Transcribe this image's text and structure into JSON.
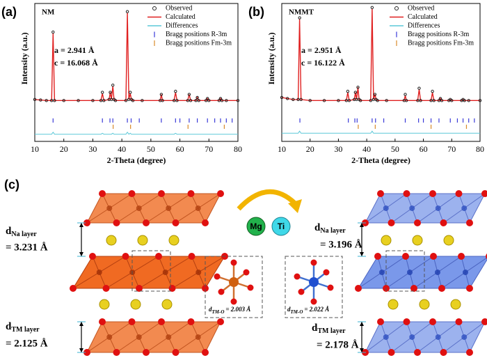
{
  "chart_data": [
    {
      "type": "line",
      "panel_label": "(a)",
      "annotation": "NM",
      "lattice": [
        "a = 2.941 Å",
        "c = 16.068 Å"
      ],
      "xlabel": "2-Theta (degree)",
      "ylabel": "Intensity (a.u.)",
      "legend": "upper right",
      "xlim": [
        10,
        80
      ],
      "xticks": [
        10,
        20,
        30,
        40,
        50,
        60,
        70,
        80
      ],
      "ylim": [
        -35,
        100
      ],
      "x": [
        10,
        12,
        14,
        15.8,
        16.3,
        16.8,
        20,
        25,
        30,
        32.8,
        33.3,
        33.8,
        35.6,
        36.0,
        36.4,
        36.9,
        37.3,
        37.8,
        41.4,
        41.9,
        42.4,
        42.9,
        43.3,
        43.8,
        47,
        53.2,
        53.6,
        54.0,
        58.0,
        58.5,
        59.0,
        62.7,
        63.2,
        63.7,
        65.5,
        66,
        66.5,
        69,
        69.5,
        70,
        73.5,
        74,
        74.5,
        76,
        80
      ],
      "series": [
        {
          "name": "Observed",
          "color": "#222222",
          "style": "markers",
          "values": [
            6,
            5.5,
            5,
            5,
            72,
            5,
            5,
            5,
            5,
            5,
            13,
            5,
            6,
            13,
            6,
            20,
            6,
            5,
            5,
            92,
            6,
            13,
            6,
            5,
            5,
            5,
            11,
            5,
            5,
            14,
            5,
            5,
            11,
            5,
            5,
            8,
            5,
            5,
            7,
            5,
            5,
            7,
            5,
            5,
            5
          ]
        },
        {
          "name": "Calculated",
          "color": "#e02020",
          "style": "line",
          "values": [
            6,
            5.5,
            5,
            5,
            71,
            5,
            5,
            5,
            5,
            5,
            12,
            5,
            6,
            13,
            6,
            19,
            6,
            5,
            5,
            91,
            6,
            12,
            6,
            5,
            5,
            5,
            11,
            5,
            5,
            13,
            5,
            5,
            11,
            5,
            5,
            8,
            5,
            5,
            7,
            5,
            5,
            7,
            5,
            5,
            5
          ]
        },
        {
          "name": "Differences",
          "color": "#5cc8d8",
          "style": "line",
          "values": [
            -28,
            -28,
            -28,
            -28,
            -26,
            -28,
            -28,
            -28,
            -28,
            -28,
            -27,
            -28,
            -28,
            -28,
            -28,
            -27,
            -28,
            -28,
            -28,
            -26,
            -28,
            -27,
            -28,
            -28,
            -28,
            -28,
            -28,
            -28,
            -28,
            -27,
            -28,
            -28,
            -28,
            -28,
            -28,
            -28,
            -28,
            -28,
            -28,
            -28,
            -28,
            -28,
            -28,
            -28,
            -28
          ]
        }
      ],
      "bragg": [
        {
          "name": "Bragg positions R-3m",
          "color": "#3a3ad8",
          "positions": [
            16.3,
            33.3,
            35.9,
            36.9,
            41.9,
            43.2,
            46,
            53.6,
            58.5,
            60,
            63.2,
            66,
            69.5,
            72,
            74,
            76,
            78
          ]
        },
        {
          "name": "Bragg positions Fm-3m",
          "color": "#d88a2a",
          "positions": [
            37,
            43,
            62.8,
            75.3
          ]
        }
      ]
    },
    {
      "type": "line",
      "panel_label": "(b)",
      "annotation": "NMMT",
      "lattice": [
        "a = 2.951 Å",
        "c = 16.122 Å"
      ],
      "xlabel": "2-Theta (degree)",
      "ylabel": "Intensity (a.u.)",
      "legend": "upper right",
      "xlim": [
        10,
        80
      ],
      "xticks": [
        10,
        20,
        30,
        40,
        50,
        60,
        70,
        80
      ],
      "ylim": [
        -35,
        100
      ],
      "x": [
        10,
        12,
        14,
        15.8,
        16.3,
        16.8,
        20,
        25,
        30,
        32.8,
        33.3,
        33.8,
        35.6,
        36.0,
        36.4,
        36.9,
        37.3,
        37.8,
        41.4,
        41.9,
        42.4,
        42.9,
        43.3,
        43.8,
        47,
        53.2,
        53.6,
        54.0,
        58.0,
        58.5,
        59.0,
        62.7,
        63.2,
        63.7,
        65.5,
        66,
        66.5,
        69,
        69.5,
        70,
        73.5,
        74,
        74.5,
        76,
        80
      ],
      "series": [
        {
          "name": "Observed",
          "color": "#222222",
          "style": "markers",
          "values": [
            8,
            7,
            6,
            6,
            86,
            6,
            5,
            5,
            5,
            5,
            14,
            5,
            6,
            13,
            6,
            18,
            6,
            5,
            5,
            96,
            6,
            11,
            6,
            5,
            5,
            5,
            11,
            5,
            5,
            17,
            5,
            5,
            14,
            5,
            5,
            7,
            5,
            5,
            6,
            5,
            5,
            6,
            5,
            5,
            5
          ]
        },
        {
          "name": "Calculated",
          "color": "#e02020",
          "style": "line",
          "values": [
            8,
            7,
            6,
            6,
            85,
            6,
            5,
            5,
            5,
            5,
            13,
            5,
            6,
            13,
            6,
            18,
            6,
            5,
            5,
            95,
            6,
            11,
            6,
            5,
            5,
            5,
            10,
            5,
            5,
            16,
            5,
            5,
            13,
            5,
            5,
            7,
            5,
            5,
            6,
            5,
            5,
            6,
            5,
            5,
            5
          ]
        },
        {
          "name": "Differences",
          "color": "#5cc8d8",
          "style": "line",
          "values": [
            -27,
            -27,
            -27,
            -27,
            -25,
            -27,
            -27,
            -27,
            -27,
            -27,
            -27,
            -27,
            -27,
            -27,
            -27,
            -27,
            -27,
            -27,
            -27,
            -25,
            -27,
            -27,
            -27,
            -27,
            -27,
            -27,
            -27,
            -27,
            -27,
            -27,
            -27,
            -27,
            -27,
            -27,
            -27,
            -27,
            -27,
            -27,
            -27,
            -27,
            -27,
            -27,
            -27,
            -27,
            -27
          ]
        }
      ],
      "bragg": [
        {
          "name": "Bragg positions R-3m",
          "color": "#3a3ad8",
          "positions": [
            16.4,
            33.5,
            35.8,
            36.6,
            41.9,
            43.1,
            46,
            53.6,
            58.3,
            60,
            62.7,
            65.5,
            69.5,
            72,
            74,
            76,
            78
          ]
        },
        {
          "name": "Bragg positions Fm-3m",
          "color": "#d88a2a",
          "positions": [
            37,
            43,
            62.7,
            75.2
          ]
        }
      ]
    }
  ],
  "diagram": {
    "label": "(c)",
    "center": {
      "mg": "Mg",
      "ti": "Ti"
    },
    "left": {
      "na": {
        "d": "d",
        "sub": "Na layer",
        "value": "= 3.231 Å"
      },
      "tm": {
        "d": "d",
        "sub": "TM layer",
        "value": "= 2.125 Å"
      },
      "bond": {
        "d": "d",
        "sub": "TM-O",
        "value": "= 2.003 Å"
      }
    },
    "right": {
      "na": {
        "d": "d",
        "sub": "Na layer",
        "value": "= 3.196 Å"
      },
      "tm": {
        "d": "d",
        "sub": "TM layer",
        "value": "= 2.178 Å"
      },
      "bond": {
        "d": "d",
        "sub": "TM-O",
        "value": "= 2.022 Å"
      }
    }
  }
}
